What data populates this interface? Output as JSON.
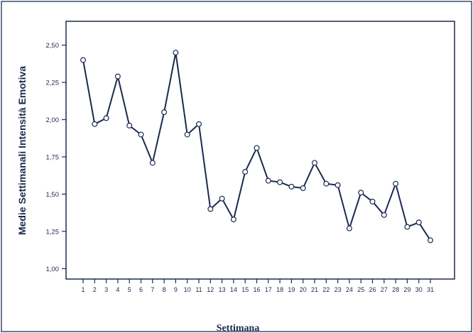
{
  "chart_data": {
    "type": "line",
    "title": "",
    "xlabel": "Settimana",
    "ylabel": "Medie Settimanali Intensità Emotiva",
    "categories": [
      "1",
      "2",
      "3",
      "4",
      "5",
      "6",
      "7",
      "8",
      "9",
      "10",
      "11",
      "12",
      "13",
      "14",
      "15",
      "16",
      "17",
      "18",
      "19",
      "20",
      "21",
      "22",
      "23",
      "24",
      "25",
      "26",
      "27",
      "28",
      "29",
      "30",
      "31"
    ],
    "y_tick_labels": [
      "1,00",
      "1,25",
      "1,50",
      "1,75",
      "2,00",
      "2,25",
      "2,50"
    ],
    "y_ticks": [
      1.0,
      1.25,
      1.5,
      1.75,
      2.0,
      2.25,
      2.5
    ],
    "ylim": [
      0.93,
      2.66
    ],
    "grid": false,
    "series": [
      {
        "values": [
          2.4,
          1.97,
          2.01,
          2.29,
          1.96,
          1.9,
          1.71,
          2.05,
          2.45,
          1.9,
          1.97,
          1.4,
          1.47,
          1.33,
          1.65,
          1.81,
          1.59,
          1.58,
          1.55,
          1.54,
          1.71,
          1.57,
          1.56,
          1.27,
          1.51,
          1.45,
          1.36,
          1.57,
          1.28,
          1.31,
          1.19
        ]
      }
    ],
    "colors": {
      "line": "#1b2a4e",
      "marker_stroke": "#1b2a4e",
      "marker_fill": "#ffffff",
      "axis": "#1b2a4e",
      "text": "#1b2a4e",
      "frame": "#3a4a6a"
    }
  }
}
